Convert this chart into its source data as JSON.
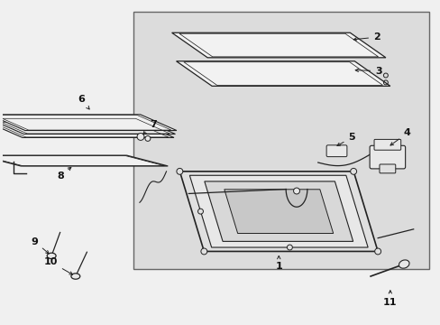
{
  "bg_color": "#f0f0f0",
  "box_bg": "#e8e8e8",
  "line_color": "#222222",
  "label_color": "#111111",
  "fig_w": 4.89,
  "fig_h": 3.6,
  "dpi": 100
}
